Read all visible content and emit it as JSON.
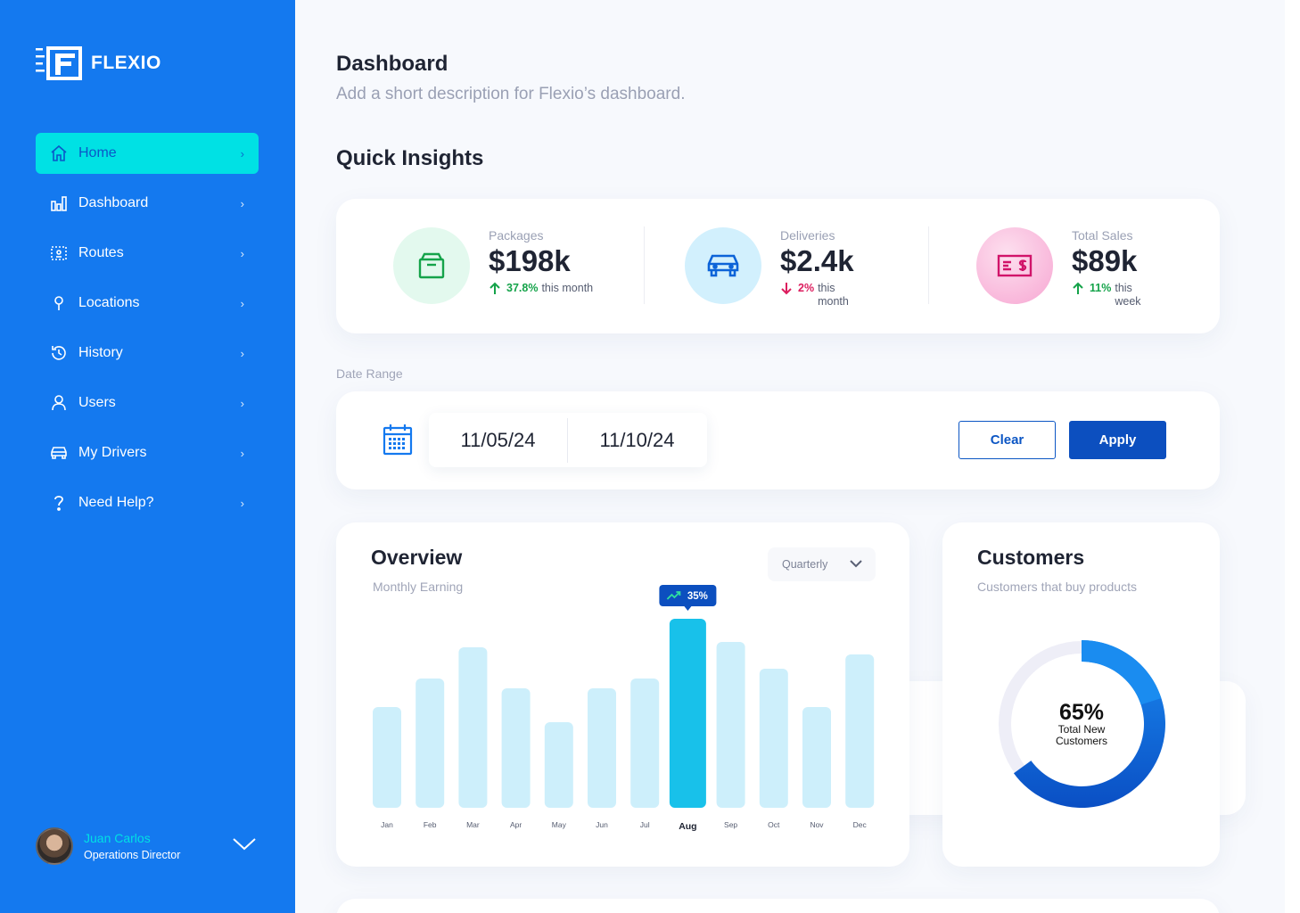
{
  "app": {
    "name": "FLEXIO"
  },
  "sidebar": {
    "items": [
      {
        "label": "Home",
        "icon": "home-icon",
        "active": true
      },
      {
        "label": "Dashboard",
        "icon": "bar-chart-icon"
      },
      {
        "label": "Routes",
        "icon": "route-icon"
      },
      {
        "label": "Locations",
        "icon": "map-pin-icon"
      },
      {
        "label": "History",
        "icon": "history-icon"
      },
      {
        "label": "Users",
        "icon": "user-icon"
      },
      {
        "label": "My Drivers",
        "icon": "car-icon"
      },
      {
        "label": "Need Help?",
        "icon": "help-icon"
      }
    ],
    "chevron": "›"
  },
  "profile": {
    "name": "Juan Carlos",
    "role": "Operations Director"
  },
  "header": {
    "title": "Dashboard",
    "description": "Add a short description for Flexio’s dashboard."
  },
  "insights": {
    "title": "Quick Insights",
    "stats": [
      {
        "label": "Packages",
        "value": "$198k",
        "pct": "37.8%",
        "note": "this month",
        "trend": "up",
        "icon": "package-icon"
      },
      {
        "label": "Deliveries",
        "value": "$2.4k",
        "pct": "2%",
        "note": "this month",
        "trend": "down",
        "icon": "car-icon"
      },
      {
        "label": "Total Sales",
        "value": "$89k",
        "pct": "11%",
        "note": "this week",
        "trend": "up",
        "icon": "cash-icon"
      }
    ]
  },
  "date_range": {
    "label": "Date Range",
    "start": "11/05/24",
    "end": "11/10/24",
    "clear_label": "Clear",
    "apply_label": "Apply"
  },
  "overview": {
    "title": "Overview",
    "subtitle": "Monthly Earning",
    "period": "Quarterly",
    "highlight_badge": "35%"
  },
  "customers": {
    "title": "Customers",
    "subtitle": "Customers that buy products",
    "pct": "65%",
    "label": "Total New Customers"
  },
  "colors": {
    "sidebar": "#1479ef",
    "active": "#00e1e4",
    "primary": "#0c4fbf",
    "bar": "#cdeffb",
    "bar_highlight": "#18c1ea",
    "up": "#15a34a",
    "down": "#dc1d5e"
  },
  "chart_data": [
    {
      "type": "bar",
      "categories": [
        "Jan",
        "Feb",
        "Mar",
        "Apr",
        "May",
        "Jun",
        "Jul",
        "Aug",
        "Sep",
        "Oct",
        "Nov",
        "Dec"
      ],
      "values": [
        113,
        145,
        180,
        134,
        96,
        134,
        145,
        212,
        186,
        156,
        113,
        172
      ],
      "highlight_index": 7,
      "highlight_label": "35%",
      "title": "Overview",
      "subtitle": "Monthly Earning",
      "ylim": [
        0,
        212
      ]
    },
    {
      "type": "pie",
      "variant": "donut",
      "values": [
        65,
        35
      ],
      "center_text": "65%",
      "center_label": "Total New Customers"
    }
  ]
}
